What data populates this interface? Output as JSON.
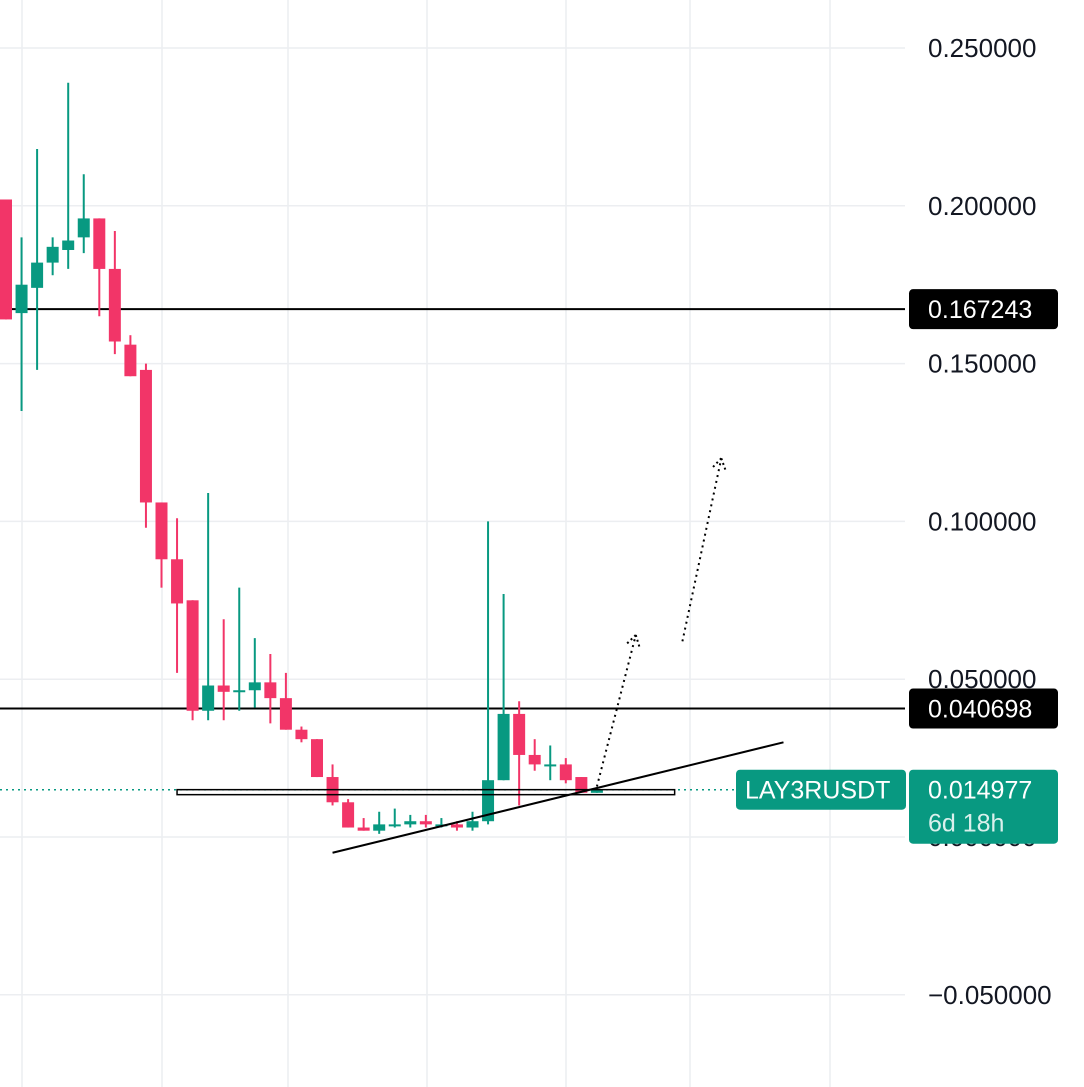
{
  "chart_data": {
    "type": "candlestick",
    "symbol": "LAY3RUSDT",
    "y_ticks": [
      0.25,
      0.2,
      0.15,
      0.1,
      0.05,
      0.0,
      -0.05
    ],
    "y_tick_labels": [
      "0.250000",
      "0.200000",
      "0.150000",
      "0.100000",
      "0.050000",
      "0.000000",
      "−0.050000"
    ],
    "ylim": [
      -0.08,
      0.265
    ],
    "grid": true,
    "colors": {
      "up": "#089981",
      "down": "#f23568",
      "line": "#000000",
      "grid": "#eceef1"
    },
    "candles": [
      {
        "o": 0.202,
        "h": 0.202,
        "l": 0.164,
        "c": 0.164
      },
      {
        "o": 0.166,
        "h": 0.19,
        "l": 0.135,
        "c": 0.175
      },
      {
        "o": 0.174,
        "h": 0.218,
        "l": 0.148,
        "c": 0.182
      },
      {
        "o": 0.182,
        "h": 0.19,
        "l": 0.178,
        "c": 0.187
      },
      {
        "o": 0.186,
        "h": 0.239,
        "l": 0.18,
        "c": 0.189
      },
      {
        "o": 0.19,
        "h": 0.21,
        "l": 0.185,
        "c": 0.196
      },
      {
        "o": 0.196,
        "h": 0.196,
        "l": 0.165,
        "c": 0.18
      },
      {
        "o": 0.18,
        "h": 0.192,
        "l": 0.153,
        "c": 0.157
      },
      {
        "o": 0.156,
        "h": 0.159,
        "l": 0.146,
        "c": 0.146
      },
      {
        "o": 0.148,
        "h": 0.15,
        "l": 0.098,
        "c": 0.106
      },
      {
        "o": 0.106,
        "h": 0.106,
        "l": 0.079,
        "c": 0.088
      },
      {
        "o": 0.088,
        "h": 0.101,
        "l": 0.052,
        "c": 0.074
      },
      {
        "o": 0.075,
        "h": 0.075,
        "l": 0.037,
        "c": 0.04
      },
      {
        "o": 0.04,
        "h": 0.109,
        "l": 0.037,
        "c": 0.048
      },
      {
        "o": 0.048,
        "h": 0.069,
        "l": 0.037,
        "c": 0.046
      },
      {
        "o": 0.046,
        "h": 0.079,
        "l": 0.04,
        "c": 0.0465
      },
      {
        "o": 0.0465,
        "h": 0.063,
        "l": 0.041,
        "c": 0.049
      },
      {
        "o": 0.049,
        "h": 0.058,
        "l": 0.036,
        "c": 0.044
      },
      {
        "o": 0.044,
        "h": 0.052,
        "l": 0.034,
        "c": 0.034
      },
      {
        "o": 0.034,
        "h": 0.035,
        "l": 0.03,
        "c": 0.031
      },
      {
        "o": 0.031,
        "h": 0.031,
        "l": 0.019,
        "c": 0.019
      },
      {
        "o": 0.019,
        "h": 0.023,
        "l": 0.01,
        "c": 0.011
      },
      {
        "o": 0.011,
        "h": 0.012,
        "l": 0.003,
        "c": 0.003
      },
      {
        "o": 0.003,
        "h": 0.006,
        "l": 0.002,
        "c": 0.002
      },
      {
        "o": 0.002,
        "h": 0.008,
        "l": 0.001,
        "c": 0.004
      },
      {
        "o": 0.004,
        "h": 0.009,
        "l": 0.003,
        "c": 0.004
      },
      {
        "o": 0.004,
        "h": 0.007,
        "l": 0.003,
        "c": 0.005
      },
      {
        "o": 0.005,
        "h": 0.007,
        "l": 0.003,
        "c": 0.004
      },
      {
        "o": 0.004,
        "h": 0.006,
        "l": 0.003,
        "c": 0.004
      },
      {
        "o": 0.004,
        "h": 0.005,
        "l": 0.002,
        "c": 0.003
      },
      {
        "o": 0.003,
        "h": 0.008,
        "l": 0.002,
        "c": 0.005
      },
      {
        "o": 0.005,
        "h": 0.1,
        "l": 0.004,
        "c": 0.018
      },
      {
        "o": 0.018,
        "h": 0.077,
        "l": 0.018,
        "c": 0.039
      },
      {
        "o": 0.039,
        "h": 0.043,
        "l": 0.01,
        "c": 0.026
      },
      {
        "o": 0.026,
        "h": 0.031,
        "l": 0.021,
        "c": 0.023
      },
      {
        "o": 0.023,
        "h": 0.029,
        "l": 0.018,
        "c": 0.023
      },
      {
        "o": 0.023,
        "h": 0.025,
        "l": 0.017,
        "c": 0.018
      },
      {
        "o": 0.019,
        "h": 0.019,
        "l": 0.014,
        "c": 0.014
      },
      {
        "o": 0.014,
        "h": 0.0155,
        "l": 0.014,
        "c": 0.015
      }
    ],
    "horizontal_levels": [
      {
        "value": 0.167243,
        "label": "0.167243"
      },
      {
        "value": 0.040698,
        "label": "0.040698"
      }
    ],
    "current_price": {
      "value": 0.014977,
      "label": "0.014977",
      "countdown": "6d 18h"
    },
    "support_zone": {
      "from_candle": 11,
      "to_candle": 43,
      "y_high": 0.015,
      "y_low": 0.0135
    },
    "trendline": {
      "from": {
        "candle": 21,
        "value": -0.005
      },
      "to": {
        "candle": 50,
        "value": 0.03
      }
    },
    "projection_arrows": [
      {
        "from": {
          "candle": 38,
          "value": 0.016
        },
        "to": {
          "candle": 40.5,
          "value": 0.064
        }
      },
      {
        "from": {
          "candle": 43.5,
          "value": 0.062
        },
        "to": {
          "candle": 46,
          "value": 0.12
        }
      }
    ]
  }
}
